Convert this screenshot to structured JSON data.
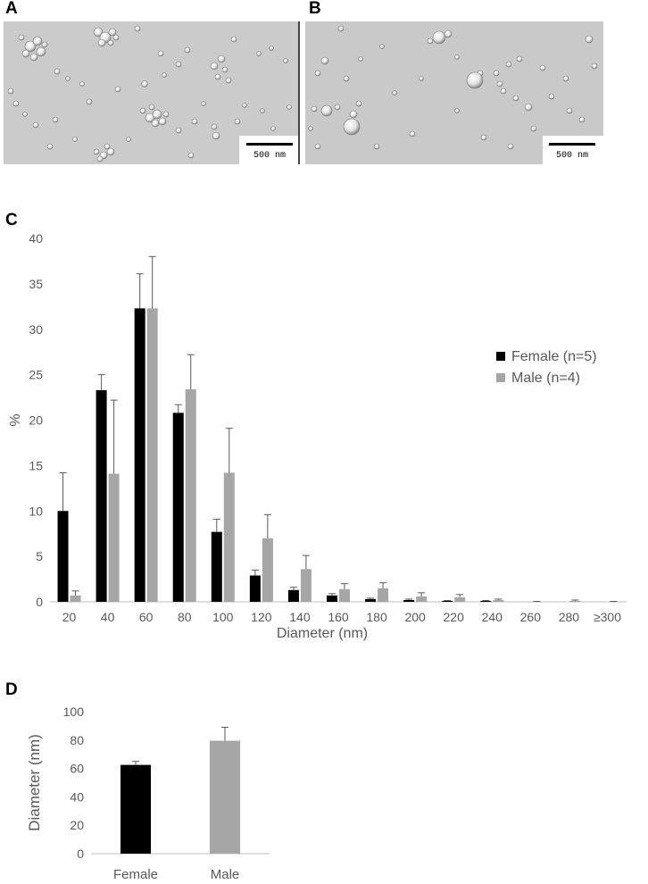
{
  "panels": {
    "a": "A",
    "b": "B",
    "c": "C",
    "d": "D"
  },
  "micrographs": {
    "a": {
      "scale_label": "500 nm"
    },
    "b": {
      "scale_label": "500 nm"
    }
  },
  "chart_data": [
    {
      "type": "bar",
      "panel": "C",
      "categories": [
        "20",
        "40",
        "60",
        "80",
        "100",
        "120",
        "140",
        "160",
        "180",
        "200",
        "220",
        "240",
        "260",
        "280",
        "≥300"
      ],
      "series": [
        {
          "name": "Female (n=5)",
          "color": "#000000",
          "values": [
            10.0,
            23.3,
            32.3,
            20.8,
            7.7,
            2.9,
            1.3,
            0.7,
            0.3,
            0.2,
            0.1,
            0.1,
            0.0,
            0.0,
            0.0
          ],
          "errors": [
            4.2,
            1.7,
            3.8,
            0.9,
            1.4,
            0.6,
            0.3,
            0.2,
            0.1,
            0.1,
            0.05,
            0.05,
            0.0,
            0.0,
            0.0
          ]
        },
        {
          "name": "Male (n=4)",
          "color": "#a6a6a6",
          "values": [
            0.7,
            14.1,
            32.3,
            23.4,
            14.2,
            7.0,
            3.6,
            1.4,
            1.5,
            0.6,
            0.5,
            0.2,
            0.0,
            0.1,
            0.0
          ],
          "errors": [
            0.5,
            8.1,
            5.7,
            3.8,
            4.9,
            2.6,
            1.5,
            0.6,
            0.6,
            0.4,
            0.3,
            0.1,
            0.05,
            0.1,
            0.05
          ]
        }
      ],
      "xlabel": "Diameter (nm)",
      "ylabel": "%",
      "ylim": [
        0,
        40
      ],
      "yticks": [
        "0",
        "5",
        "10",
        "15",
        "20",
        "25",
        "30",
        "35",
        "40"
      ],
      "legend_position": "right",
      "grid": false
    },
    {
      "type": "bar",
      "panel": "D",
      "categories": [
        "Female",
        "Male"
      ],
      "values": [
        62.5,
        79.5
      ],
      "errors": [
        2.5,
        9.5
      ],
      "colors": [
        "#000000",
        "#a6a6a6"
      ],
      "xlabel": "",
      "ylabel": "Diameter (nm)",
      "ylim": [
        0,
        100
      ],
      "yticks": [
        "0",
        "20",
        "40",
        "60",
        "80",
        "100"
      ],
      "grid": false
    }
  ]
}
